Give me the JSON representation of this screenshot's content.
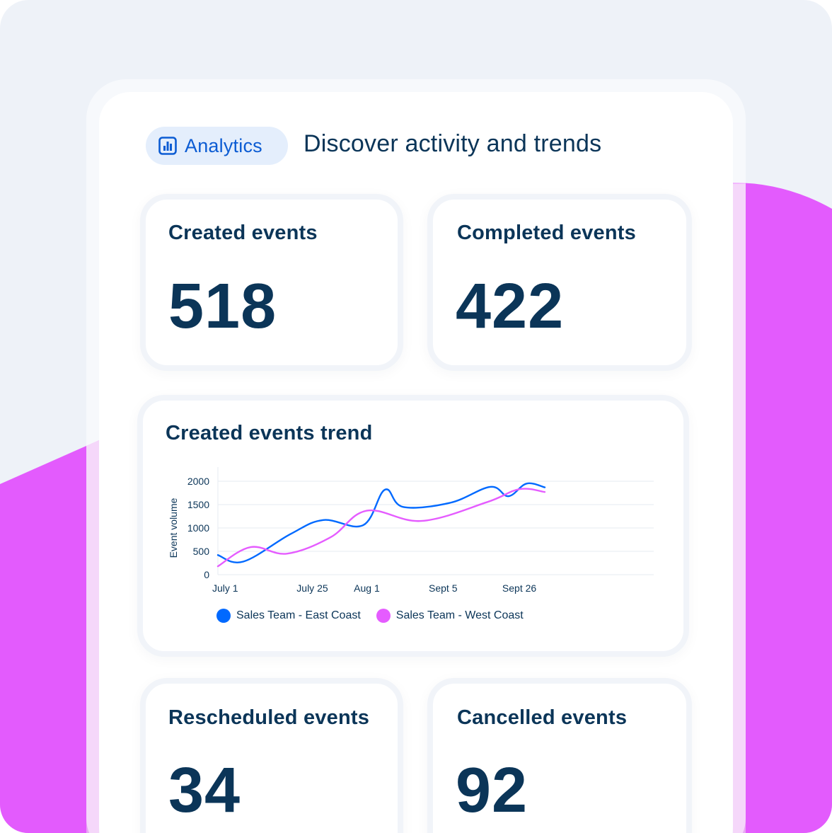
{
  "header": {
    "badge_label": "Analytics",
    "badge_icon": "bar-chart-icon",
    "title": "Discover activity and trends"
  },
  "stats": [
    {
      "title": "Created events",
      "value": "518"
    },
    {
      "title": "Completed events",
      "value": "422"
    },
    {
      "title": "Rescheduled events",
      "value": "34"
    },
    {
      "title": "Cancelled events",
      "value": "92"
    }
  ],
  "trend": {
    "title": "Created events trend"
  },
  "colors": {
    "accent_blue": "#0069ff",
    "accent_purple": "#e55cff",
    "text_dark": "#0b3558",
    "background_magenta": "#e35bfd"
  },
  "chart_data": {
    "type": "line",
    "title": "Created events trend",
    "xlabel": "",
    "ylabel": "Event volume",
    "ylim": [
      0,
      2000
    ],
    "yticks": [
      0,
      500,
      1000,
      1500,
      2000
    ],
    "xtick_labels": [
      "July 1",
      "July 25",
      "Aug 1",
      "Sept 5",
      "Sept 26"
    ],
    "xlim": [
      0,
      12
    ],
    "xticks": [
      0.2,
      2.6,
      4.1,
      6.2,
      8.3
    ],
    "grid": true,
    "legend": "bottom",
    "series": [
      {
        "name": "Sales Team - East Coast",
        "color": "#0069ff",
        "x": [
          0,
          0.7,
          2.0,
          2.9,
          4.0,
          4.6,
          5.1,
          6.4,
          7.5,
          8.0,
          8.5,
          9.0
        ],
        "y": [
          420,
          280,
          870,
          1170,
          1060,
          1820,
          1450,
          1540,
          1880,
          1680,
          1950,
          1870
        ]
      },
      {
        "name": "Sales Team - West Coast",
        "color": "#e55cff",
        "x": [
          0,
          0.9,
          1.9,
          3.1,
          4.1,
          5.6,
          7.4,
          8.3,
          9.0
        ],
        "y": [
          180,
          590,
          450,
          800,
          1370,
          1150,
          1550,
          1830,
          1770
        ]
      }
    ]
  }
}
